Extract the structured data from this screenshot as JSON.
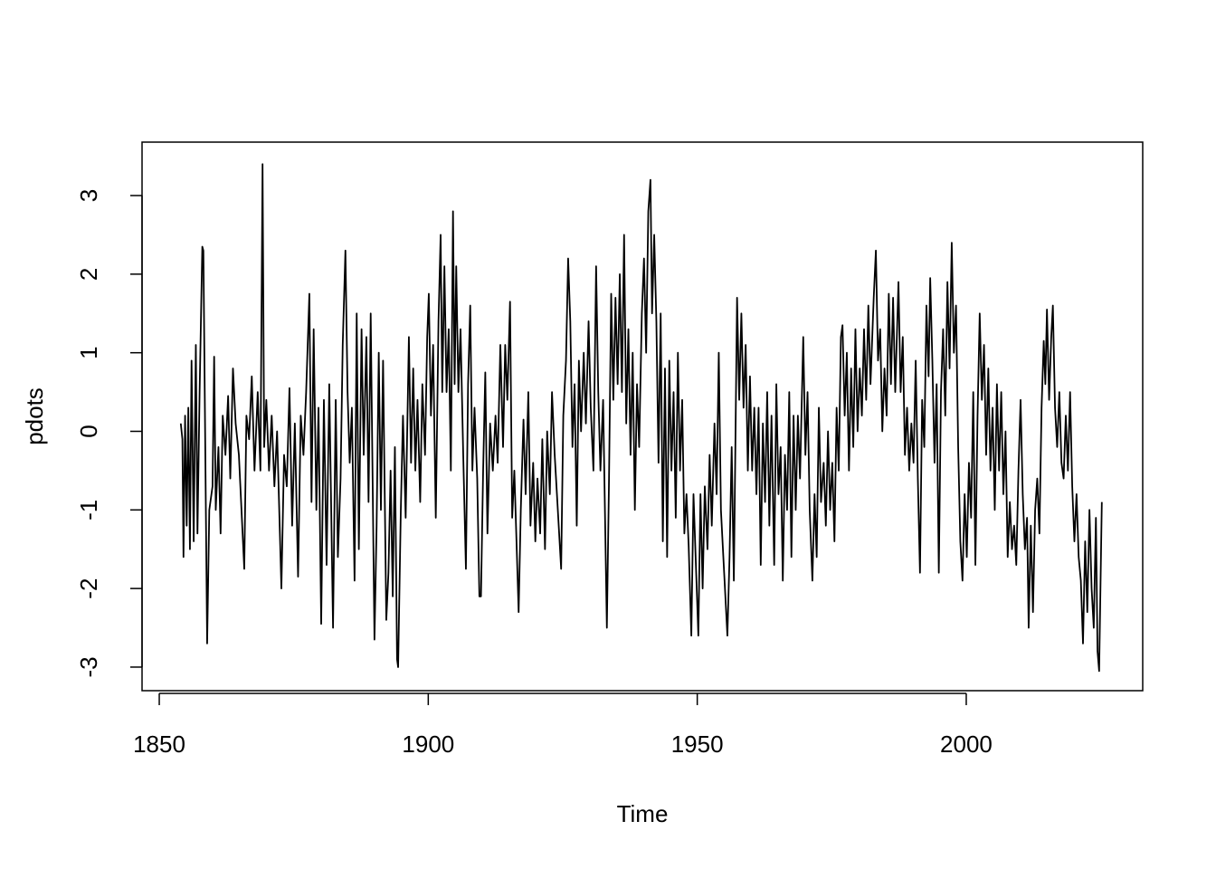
{
  "chart_data": {
    "type": "line",
    "x_label": "Time",
    "y_label": "pdots",
    "color": "#000000",
    "xlim": [
      1846.8,
      2032.8
    ],
    "ylim": [
      -3.3,
      3.68
    ],
    "xticks": [
      1850,
      1900,
      1950,
      2000
    ],
    "yticks": [
      -3,
      -2,
      -1,
      0,
      1,
      2,
      3
    ],
    "x": [
      1854.0,
      1854.3,
      1854.5,
      1854.8,
      1855.1,
      1855.4,
      1855.7,
      1856.0,
      1856.4,
      1856.8,
      1857.1,
      1857.5,
      1858.0,
      1858.2,
      1858.9,
      1859.3,
      1859.9,
      1860.2,
      1860.5,
      1861.0,
      1861.4,
      1861.8,
      1862.3,
      1862.8,
      1863.2,
      1863.7,
      1864.2,
      1864.8,
      1865.8,
      1866.2,
      1866.7,
      1867.2,
      1867.7,
      1868.3,
      1868.8,
      1869.2,
      1869.5,
      1869.9,
      1870.4,
      1870.9,
      1871.4,
      1871.9,
      1872.7,
      1873.2,
      1873.7,
      1874.2,
      1874.7,
      1875.2,
      1875.8,
      1876.3,
      1876.8,
      1877.3,
      1877.9,
      1878.3,
      1878.7,
      1879.2,
      1879.6,
      1880.1,
      1880.6,
      1881.1,
      1881.6,
      1882.3,
      1882.8,
      1883.2,
      1883.7,
      1884.1,
      1884.6,
      1885.0,
      1885.4,
      1885.8,
      1886.3,
      1886.7,
      1887.1,
      1887.6,
      1888.0,
      1888.5,
      1888.9,
      1889.3,
      1890.0,
      1890.4,
      1890.8,
      1891.2,
      1891.6,
      1892.2,
      1892.6,
      1893.0,
      1893.4,
      1893.8,
      1894.2,
      1894.4,
      1894.9,
      1895.3,
      1895.8,
      1896.4,
      1896.8,
      1897.2,
      1897.6,
      1898.0,
      1898.5,
      1898.9,
      1899.4,
      1899.8,
      1900.1,
      1900.5,
      1900.9,
      1901.4,
      1901.9,
      1902.3,
      1902.6,
      1903.0,
      1903.4,
      1903.8,
      1904.2,
      1904.6,
      1904.9,
      1905.2,
      1905.6,
      1906.0,
      1906.5,
      1907.0,
      1907.4,
      1907.8,
      1908.2,
      1908.6,
      1909.1,
      1909.5,
      1909.8,
      1910.2,
      1910.6,
      1911.0,
      1911.5,
      1912.0,
      1912.5,
      1912.9,
      1913.4,
      1913.9,
      1914.3,
      1914.7,
      1915.2,
      1915.6,
      1916.0,
      1916.8,
      1917.2,
      1917.7,
      1918.1,
      1918.6,
      1919.0,
      1919.5,
      1919.9,
      1920.3,
      1920.8,
      1921.2,
      1921.7,
      1922.1,
      1922.6,
      1923.0,
      1923.5,
      1924.0,
      1924.7,
      1925.1,
      1925.6,
      1926.0,
      1926.4,
      1926.8,
      1927.2,
      1927.6,
      1928.0,
      1928.4,
      1928.9,
      1929.3,
      1929.8,
      1930.2,
      1930.7,
      1931.2,
      1931.6,
      1932.0,
      1932.5,
      1933.2,
      1933.6,
      1934.0,
      1934.4,
      1934.8,
      1935.2,
      1935.6,
      1936.0,
      1936.4,
      1936.8,
      1937.2,
      1937.6,
      1938.0,
      1938.4,
      1938.8,
      1939.2,
      1939.7,
      1940.1,
      1940.5,
      1940.9,
      1941.3,
      1941.6,
      1942.0,
      1942.4,
      1942.8,
      1943.2,
      1943.6,
      1944.0,
      1944.4,
      1944.8,
      1945.2,
      1945.6,
      1946.0,
      1946.4,
      1946.8,
      1947.2,
      1947.6,
      1948.0,
      1948.4,
      1948.9,
      1949.3,
      1949.8,
      1950.2,
      1950.6,
      1951.0,
      1951.4,
      1951.9,
      1952.3,
      1952.7,
      1953.2,
      1953.6,
      1954.0,
      1954.4,
      1955.0,
      1955.6,
      1956.0,
      1956.4,
      1956.8,
      1957.4,
      1957.8,
      1958.2,
      1958.6,
      1959.0,
      1959.4,
      1959.8,
      1960.2,
      1960.6,
      1961.0,
      1961.4,
      1961.8,
      1962.2,
      1962.6,
      1963.0,
      1963.4,
      1963.8,
      1964.3,
      1964.7,
      1965.1,
      1965.5,
      1965.9,
      1966.3,
      1966.7,
      1967.1,
      1967.5,
      1967.9,
      1968.3,
      1968.7,
      1969.1,
      1969.7,
      1970.1,
      1970.5,
      1970.9,
      1971.4,
      1971.8,
      1972.2,
      1972.6,
      1973.0,
      1973.5,
      1973.9,
      1974.3,
      1974.7,
      1975.1,
      1975.5,
      1975.9,
      1976.3,
      1976.7,
      1977.0,
      1977.4,
      1977.8,
      1978.2,
      1978.6,
      1979.0,
      1979.4,
      1979.8,
      1980.2,
      1980.6,
      1981.0,
      1981.4,
      1981.8,
      1982.2,
      1982.8,
      1983.2,
      1983.6,
      1984.0,
      1984.4,
      1984.8,
      1985.2,
      1985.6,
      1986.0,
      1986.4,
      1986.8,
      1987.4,
      1987.8,
      1988.2,
      1988.6,
      1989.0,
      1989.4,
      1989.8,
      1990.2,
      1990.6,
      1991.0,
      1991.4,
      1991.8,
      1992.2,
      1992.6,
      1993.0,
      1993.3,
      1993.7,
      1994.1,
      1994.5,
      1994.9,
      1995.3,
      1995.7,
      1996.1,
      1996.5,
      1996.9,
      1997.3,
      1997.7,
      1998.1,
      1998.5,
      1998.9,
      1999.3,
      1999.7,
      2000.1,
      2000.5,
      2000.9,
      2001.3,
      2001.7,
      2002.1,
      2002.5,
      2002.9,
      2003.3,
      2003.7,
      2004.1,
      2004.5,
      2004.9,
      2005.3,
      2005.7,
      2006.1,
      2006.5,
      2006.9,
      2007.3,
      2007.7,
      2008.1,
      2008.5,
      2008.9,
      2009.3,
      2009.7,
      2010.1,
      2010.5,
      2010.9,
      2011.3,
      2011.6,
      2012.0,
      2012.4,
      2012.8,
      2013.2,
      2013.6,
      2014.0,
      2014.4,
      2014.7,
      2015.0,
      2015.4,
      2015.8,
      2016.1,
      2016.5,
      2016.9,
      2017.3,
      2017.7,
      2018.1,
      2018.5,
      2018.9,
      2019.3,
      2019.7,
      2020.1,
      2020.5,
      2020.9,
      2021.3,
      2021.7,
      2022.1,
      2022.5,
      2022.9,
      2023.3,
      2023.7,
      2024.1,
      2024.4,
      2024.7,
      2025.2
    ],
    "values": [
      0.1,
      -0.1,
      -1.6,
      0.2,
      -1.2,
      0.3,
      -1.5,
      0.9,
      -1.4,
      1.1,
      -1.3,
      0.5,
      2.35,
      2.3,
      -2.7,
      -1.0,
      -0.7,
      0.95,
      -1.0,
      -0.2,
      -1.3,
      0.2,
      -0.3,
      0.45,
      -0.6,
      0.8,
      0.1,
      -0.3,
      -1.75,
      0.2,
      -0.1,
      0.7,
      -0.5,
      0.5,
      -0.5,
      3.4,
      -0.2,
      0.4,
      -0.5,
      0.2,
      -0.7,
      0,
      -2,
      -0.3,
      -0.7,
      0.55,
      -1.2,
      0.1,
      -1.85,
      0.2,
      -0.3,
      0.5,
      1.75,
      -0.9,
      1.3,
      -1,
      0.3,
      -2.45,
      0.4,
      -1.7,
      0.6,
      -2.5,
      0.4,
      -1.6,
      -0.6,
      1.1,
      2.3,
      0.5,
      -0.4,
      0.3,
      -1.9,
      1.5,
      -1.5,
      1.3,
      -0.3,
      1.2,
      -0.9,
      1.5,
      -2.65,
      -1.2,
      1,
      -1,
      0.9,
      -2.4,
      -1.8,
      -0.5,
      -2.1,
      -0.2,
      -2.9,
      -3,
      -1,
      0.2,
      -1.1,
      1.2,
      -0.4,
      0.8,
      -0.5,
      0.4,
      -0.9,
      0.6,
      -0.3,
      1.2,
      1.75,
      0.2,
      1.1,
      -1.1,
      1.4,
      2.5,
      0.5,
      2.1,
      0.5,
      1.3,
      -0.5,
      2.8,
      0.6,
      2.1,
      0.5,
      1.3,
      -0.3,
      -1.75,
      0.6,
      1.6,
      -0.5,
      0.3,
      -0.6,
      -2.1,
      -2.1,
      -0.5,
      0.75,
      -1.3,
      0.1,
      -0.5,
      0.2,
      -0.4,
      1.1,
      -0.2,
      1.1,
      0.4,
      1.65,
      -1.1,
      -0.5,
      -2.3,
      -1,
      0.15,
      -0.8,
      0.5,
      -1.2,
      -0.4,
      -1.4,
      -0.6,
      -1.3,
      -0.1,
      -1.5,
      0,
      -0.8,
      0.5,
      -0.3,
      -0.9,
      -1.75,
      0.2,
      0.9,
      2.2,
      1.4,
      -0.2,
      0.6,
      -1.2,
      0.9,
      0,
      1,
      0.1,
      1.4,
      0.3,
      -0.5,
      2.1,
      0.5,
      -0.5,
      0.4,
      -2.5,
      -0.6,
      1.75,
      0.4,
      1.7,
      0.6,
      2,
      0.5,
      2.5,
      0.1,
      1.3,
      -0.3,
      1,
      -1,
      0.6,
      -0.2,
      1.5,
      2.2,
      1,
      2.8,
      3.2,
      1.5,
      2.5,
      1.4,
      -0.4,
      1.5,
      -1.4,
      0.8,
      -1.6,
      0.9,
      -0.5,
      0.5,
      -1.1,
      1,
      -0.5,
      0.4,
      -1.3,
      -0.8,
      -1.45,
      -2.6,
      -0.8,
      -1.8,
      -2.6,
      -0.8,
      -2,
      -0.7,
      -1.5,
      -0.3,
      -1.2,
      0.1,
      -0.8,
      1,
      -1,
      -1.8,
      -2.6,
      -1.6,
      -0.2,
      -1.9,
      1.7,
      0.4,
      1.5,
      0.3,
      1.1,
      -0.5,
      0.7,
      -0.5,
      0.3,
      -0.8,
      0.3,
      -1.7,
      0.1,
      -0.9,
      0.5,
      -1.2,
      0.2,
      -1.7,
      0.6,
      -0.8,
      -0.2,
      -1.9,
      -0.3,
      -1,
      0.5,
      -1.6,
      0.2,
      -1,
      0.2,
      -0.6,
      1.2,
      -0.3,
      0.5,
      -1,
      -1.9,
      -0.8,
      -1.6,
      0.3,
      -0.9,
      -0.4,
      -1.2,
      0,
      -1,
      -0.4,
      -1.4,
      0.3,
      -0.5,
      1.2,
      1.35,
      0.2,
      1,
      -0.5,
      0.8,
      -0.2,
      1.3,
      0,
      0.8,
      0.2,
      1.3,
      0.4,
      1.6,
      0.6,
      1.7,
      2.3,
      0.9,
      1.3,
      0,
      0.8,
      0.2,
      1.75,
      0.6,
      1.7,
      0.5,
      1.9,
      0.5,
      1.2,
      -0.3,
      0.3,
      -0.5,
      0.1,
      -0.4,
      0.9,
      -0.6,
      -1.8,
      0.4,
      -0.2,
      1.6,
      0.7,
      1.95,
      0.9,
      -0.4,
      0.6,
      -1.8,
      0.5,
      1.3,
      0.2,
      1.9,
      0.8,
      2.4,
      1,
      1.6,
      -0.2,
      -1.4,
      -1.9,
      -0.8,
      -1.6,
      -0.4,
      -1.1,
      0.5,
      -1.7,
      0.2,
      1.5,
      0.4,
      1.1,
      -0.3,
      0.8,
      -0.5,
      0.3,
      -1,
      0.6,
      -0.5,
      0.5,
      -0.8,
      0,
      -1.6,
      -0.9,
      -1.5,
      -1.2,
      -1.7,
      -0.5,
      0.4,
      -0.8,
      -1.5,
      -1.1,
      -2.5,
      -1.2,
      -2.3,
      -1,
      -0.6,
      -1.3,
      0.3,
      1.15,
      0.6,
      1.55,
      0.4,
      1.2,
      1.6,
      0.3,
      -0.2,
      0.5,
      -0.4,
      -0.6,
      0.2,
      -0.5,
      0.5,
      -0.7,
      -1.4,
      -0.8,
      -1.6,
      -1.9,
      -2.7,
      -1.4,
      -2.3,
      -1,
      -2,
      -2.5,
      -1.1,
      -2.8,
      -3.05,
      -0.9
    ]
  }
}
